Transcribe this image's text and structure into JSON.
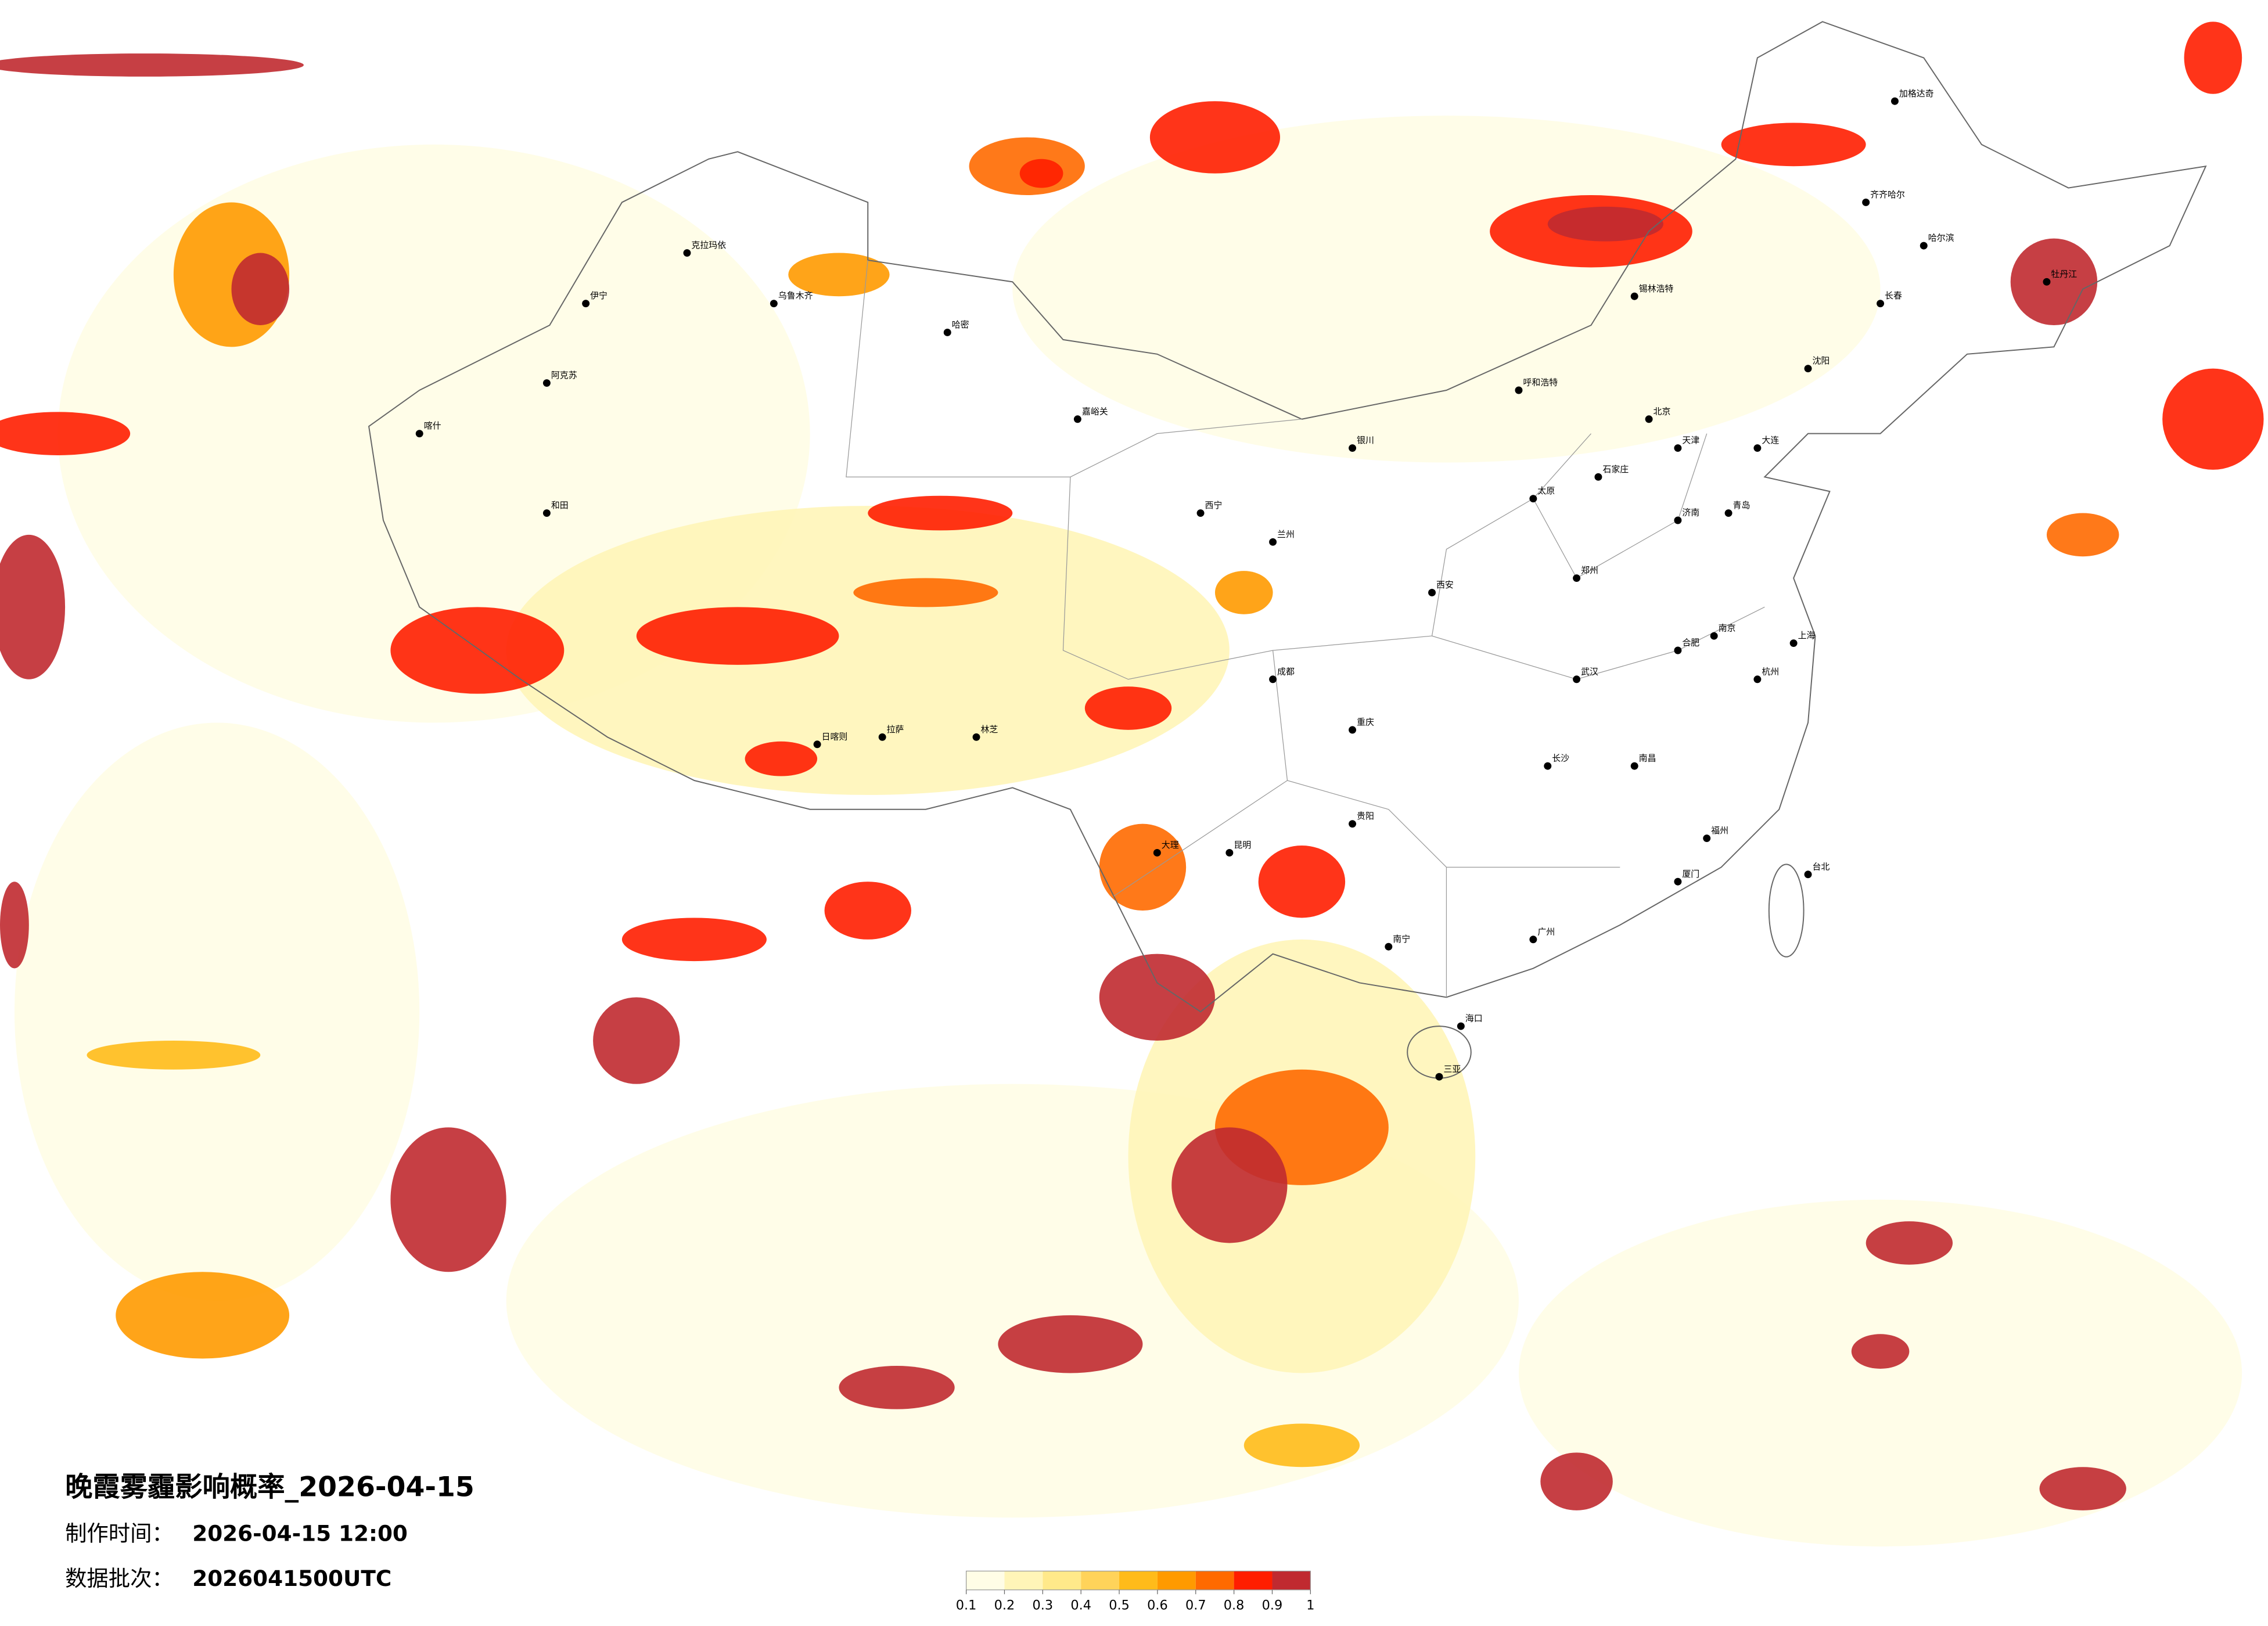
{
  "title": "晚霞雾霾影响概率_2026-04-15",
  "made_label": "制作时间：",
  "made_time": "2026-04-15 12:00",
  "batch_label": "数据批次：",
  "batch": "2026041500UTC",
  "colorbar": {
    "ticks": [
      0.1,
      0.2,
      0.3,
      0.4,
      0.5,
      0.6,
      0.7,
      0.8,
      0.9,
      1
    ],
    "colors": [
      "#fffde6",
      "#fff5b8",
      "#ffe98a",
      "#ffd35a",
      "#ffbb1a",
      "#ff9a00",
      "#ff6a00",
      "#ff1e00",
      "#c02a30"
    ]
  },
  "cities": [
    "北京",
    "天津",
    "石家庄",
    "太原",
    "呼和浩特",
    "沈阳",
    "长春",
    "哈尔滨",
    "济南",
    "郑州",
    "西安",
    "兰州",
    "西宁",
    "银川",
    "乌鲁木齐",
    "拉萨",
    "成都",
    "重庆",
    "贵阳",
    "昆明",
    "南宁",
    "广州",
    "福州",
    "杭州",
    "上海",
    "南京",
    "合肥",
    "武汉",
    "长沙",
    "南昌",
    "海口",
    "台北",
    "喀什",
    "和田",
    "伊宁",
    "克拉玛依",
    "哈密",
    "阿克苏",
    "日喀则",
    "林芝",
    "大理",
    "齐齐哈尔",
    "加格达奇",
    "嘉峪关",
    "锡林浩特",
    "大连",
    "青岛",
    "厦门",
    "三亚",
    "牡丹江"
  ]
}
